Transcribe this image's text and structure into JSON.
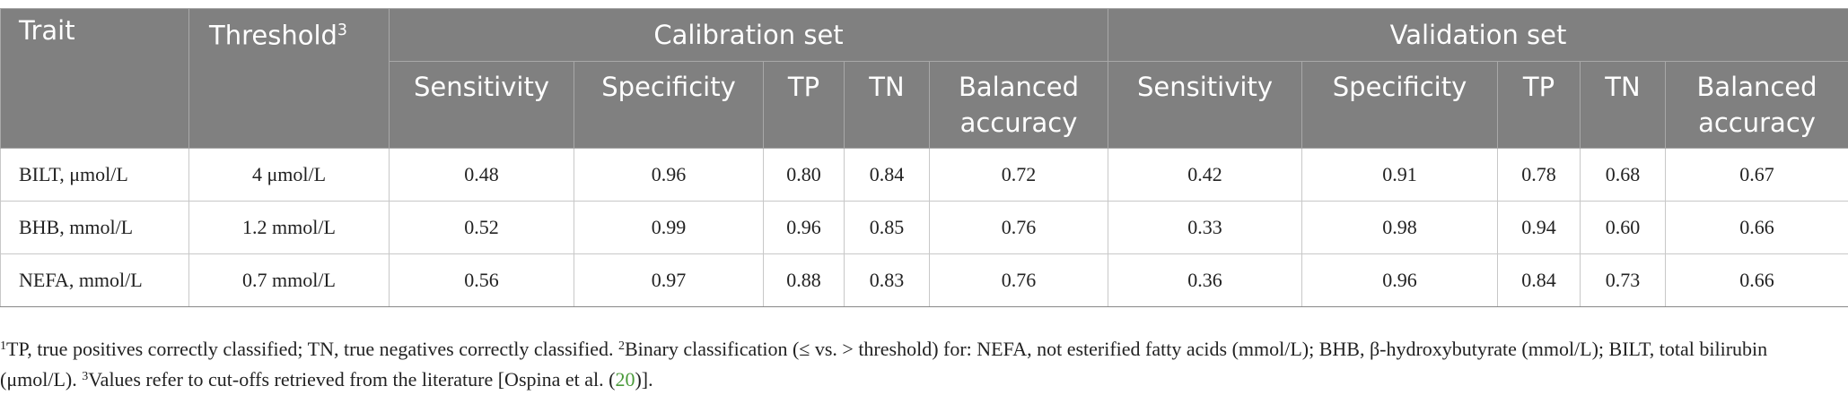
{
  "table": {
    "header": {
      "trait": "Trait",
      "threshold": "Threshold",
      "threshold_note": "3",
      "groups": [
        {
          "name": "Calibration set",
          "columns": [
            "Sensitivity",
            "Specificity",
            "TP",
            "TN",
            "Balanced accuracy"
          ]
        },
        {
          "name": "Validation set",
          "columns": [
            "Sensitivity",
            "Specificity",
            "TP",
            "TN",
            "Balanced accuracy"
          ]
        }
      ]
    },
    "rows": [
      [
        "BILT, μmol/L",
        "4 μmol/L",
        "0.48",
        "0.96",
        "0.80",
        "0.84",
        "0.72",
        "0.42",
        "0.91",
        "0.78",
        "0.68",
        "0.67"
      ],
      [
        "BHB, mmol/L",
        "1.2 mmol/L",
        "0.52",
        "0.99",
        "0.96",
        "0.85",
        "0.76",
        "0.33",
        "0.98",
        "0.94",
        "0.60",
        "0.66"
      ],
      [
        "NEFA, mmol/L",
        "0.7 mmol/L",
        "0.56",
        "0.97",
        "0.88",
        "0.83",
        "0.76",
        "0.36",
        "0.96",
        "0.84",
        "0.73",
        "0.66"
      ]
    ]
  },
  "footnote": [
    "1",
    "TP, true positives correctly classified; TN, true negatives correctly classified. ",
    "2",
    "Binary classification (≤ vs. > threshold) for: NEFA, not esterified fatty acids (mmol/L); BHB, β-hydroxybutyrate (mmol/L); BILT, total bilirubin (μmol/L). ",
    "3",
    "Values refer to cut-offs retrieved from the literature [Ospina et al. (",
    "20",
    ")]."
  ]
}
